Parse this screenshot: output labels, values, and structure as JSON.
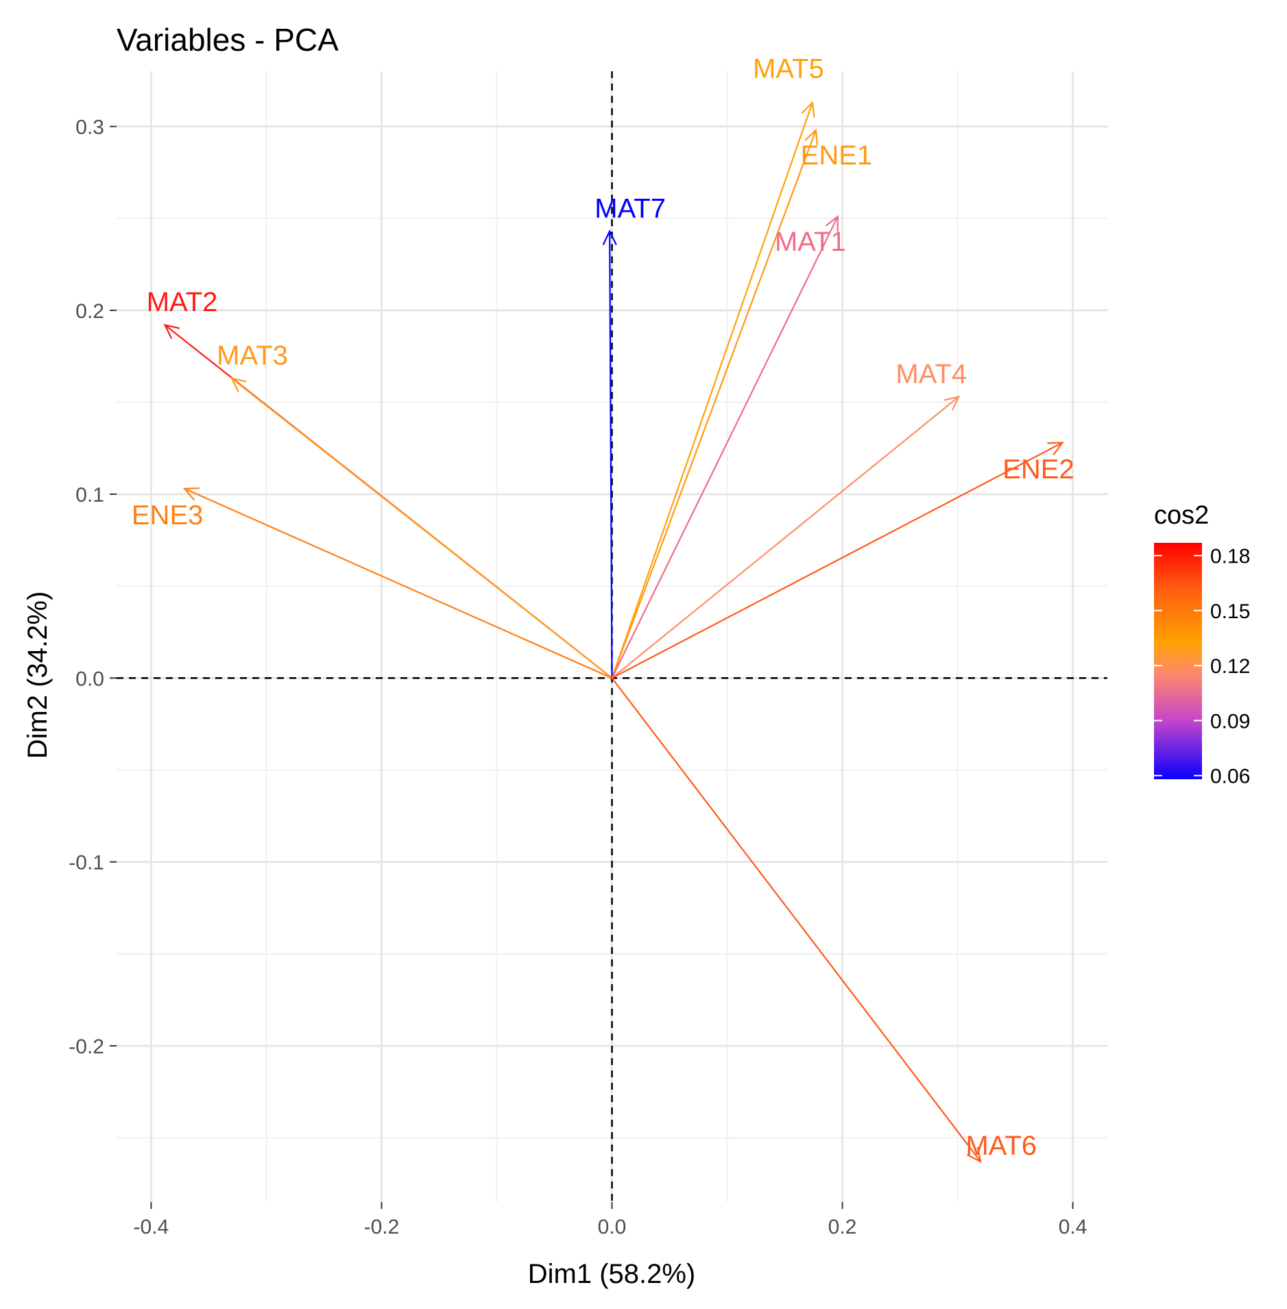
{
  "chart_data": {
    "type": "pca-variable-plot",
    "title": "Variables - PCA",
    "xlabel": "Dim1 (58.2%)",
    "ylabel": "Dim2 (34.2%)",
    "xlim": [
      -0.43,
      0.43
    ],
    "ylim": [
      -0.285,
      0.33
    ],
    "xticks": [
      -0.4,
      -0.2,
      0.0,
      0.2,
      0.4
    ],
    "xtick_labels": [
      "-0.4",
      "-0.2",
      "0.0",
      "0.2",
      "0.4"
    ],
    "yticks": [
      -0.2,
      -0.1,
      0.0,
      0.1,
      0.2,
      0.3
    ],
    "ytick_labels": [
      "-0.2",
      "-0.1",
      "0.0",
      "0.1",
      "0.2",
      "0.3"
    ],
    "grid": true,
    "reference_lines": "dashed at x=0 and y=0",
    "legend": {
      "title": "cos2",
      "position": "right",
      "ticks": [
        0.06,
        0.09,
        0.12,
        0.15,
        0.18
      ],
      "tick_labels": [
        "0.06",
        "0.09",
        "0.12",
        "0.15",
        "0.18"
      ],
      "range": [
        0.058,
        0.187
      ],
      "colors": [
        "#0000ff",
        "#ff8c00",
        "#ff0000"
      ]
    },
    "variables": [
      {
        "name": "MAT5",
        "x": 0.174,
        "y": 0.313,
        "cos2": 0.128,
        "color": "#ffa10a"
      },
      {
        "name": "ENE1",
        "x": 0.177,
        "y": 0.298,
        "cos2": 0.132,
        "color": "#ff9a10"
      },
      {
        "name": "MAT7",
        "x": -0.002,
        "y": 0.243,
        "cos2": 0.059,
        "color": "#0000ff"
      },
      {
        "name": "MAT1",
        "x": 0.196,
        "y": 0.251,
        "cos2": 0.101,
        "color": "#ee6d86"
      },
      {
        "name": "MAT2",
        "x": -0.388,
        "y": 0.192,
        "cos2": 0.187,
        "color": "#ff1a14"
      },
      {
        "name": "MAT3",
        "x": -0.33,
        "y": 0.163,
        "cos2": 0.135,
        "color": "#ff9a1a"
      },
      {
        "name": "MAT4",
        "x": 0.301,
        "y": 0.153,
        "cos2": 0.114,
        "color": "#ff8d66"
      },
      {
        "name": "ENE2",
        "x": 0.391,
        "y": 0.128,
        "cos2": 0.169,
        "color": "#ff5a1a"
      },
      {
        "name": "ENE3",
        "x": -0.371,
        "y": 0.103,
        "cos2": 0.148,
        "color": "#ff8015"
      },
      {
        "name": "MAT6",
        "x": 0.32,
        "y": -0.263,
        "cos2": 0.171,
        "color": "#ff5a1a"
      }
    ]
  }
}
